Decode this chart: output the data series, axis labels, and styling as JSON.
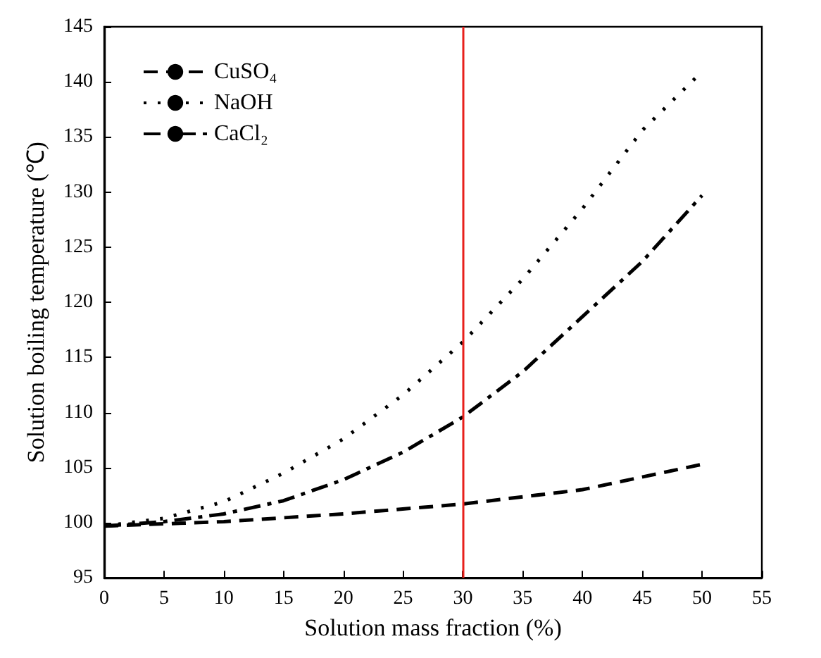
{
  "chart_data": {
    "type": "line",
    "xlabel": "Solution mass fraction (%)",
    "ylabel": "Solution boiling temperature (℃)",
    "xlim": [
      0,
      55
    ],
    "xticks": [
      0,
      5,
      10,
      15,
      20,
      25,
      30,
      35,
      40,
      45,
      50,
      55
    ],
    "ylim": [
      95,
      145
    ],
    "yticks": [
      95,
      100,
      105,
      110,
      115,
      120,
      125,
      130,
      135,
      140,
      145
    ],
    "grid": false,
    "legend": "top left",
    "marker": "none",
    "series": [
      {
        "name": "CuSO₄",
        "color": "#000000",
        "line_style": "dashed",
        "x": [
          0,
          10,
          20,
          30,
          40,
          50
        ],
        "values": [
          99.7,
          100.1,
          100.8,
          101.7,
          103.0,
          105.3
        ]
      },
      {
        "name": "NaOH",
        "color": "#000000",
        "line_style": "dotted",
        "x": [
          0,
          5,
          10,
          15,
          20,
          25,
          30,
          35,
          40,
          45,
          49.5
        ],
        "values": [
          99.7,
          100.4,
          101.9,
          104.5,
          107.6,
          111.6,
          116.4,
          122.1,
          128.5,
          135.6,
          140.4
        ]
      },
      {
        "name": "CaCl₂",
        "color": "#000000",
        "line_style": "dashdot",
        "x": [
          0,
          5,
          10,
          15,
          20,
          25,
          30,
          35,
          40,
          45,
          50
        ],
        "values": [
          99.7,
          100.1,
          100.8,
          102.0,
          103.9,
          106.4,
          109.6,
          113.7,
          118.7,
          123.7,
          129.7
        ]
      }
    ],
    "ref_lines": [
      {
        "axis": "x",
        "value": 30,
        "color": "#e8201c",
        "line_style": "solid"
      }
    ]
  }
}
